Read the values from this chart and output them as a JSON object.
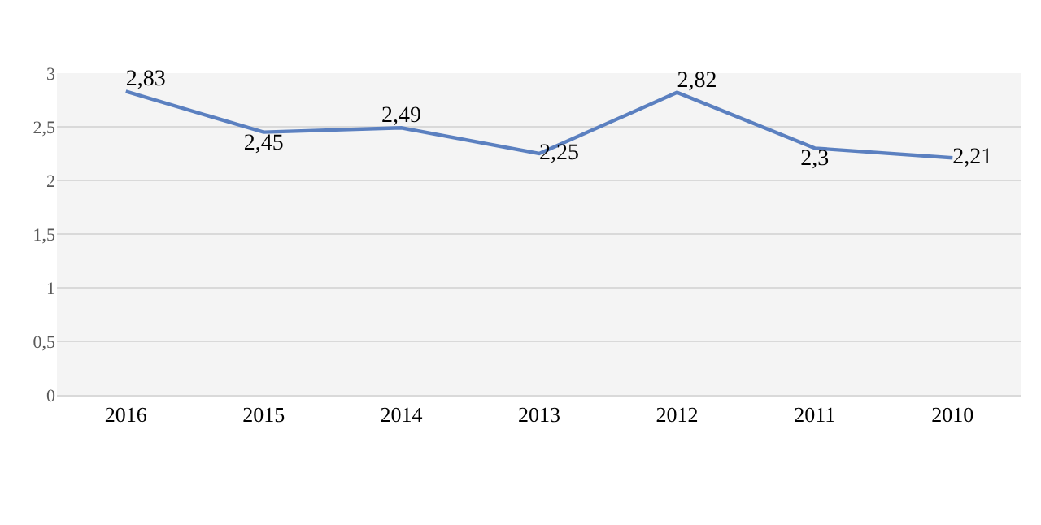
{
  "chart_data": {
    "type": "line",
    "categories": [
      "2016",
      "2015",
      "2014",
      "2013",
      "2012",
      "2011",
      "2010"
    ],
    "series": [
      {
        "color": "#5b80c0",
        "values": [
          2.83,
          2.45,
          2.49,
          2.25,
          2.82,
          2.3,
          2.21
        ],
        "value_labels": [
          "2,83",
          "2,45",
          "2,49",
          "2,25",
          "2,82",
          "2,3",
          "2,21"
        ]
      }
    ],
    "ylim": [
      0,
      3
    ],
    "yticks": [
      0,
      {
        "value": 0.5,
        "label": "0,5"
      },
      1,
      {
        "value": 1.5,
        "label": "1,5"
      },
      2,
      {
        "value": 2.5,
        "label": "2,5"
      },
      3
    ],
    "grid": "y",
    "marker": "none",
    "line_style": "solid"
  }
}
